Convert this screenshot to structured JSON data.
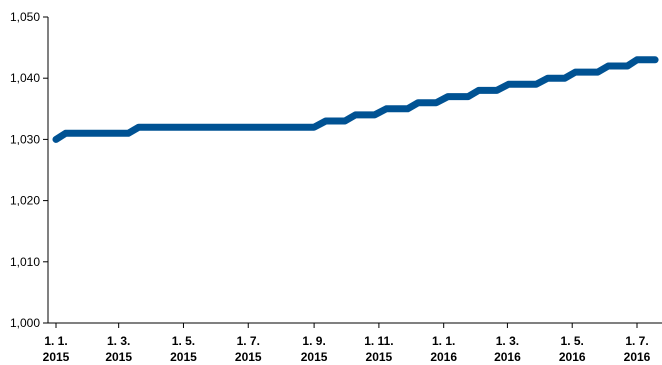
{
  "chart_data": {
    "type": "line",
    "title": "",
    "xlabel": "",
    "ylabel": "",
    "ylim": [
      1.0,
      1.05
    ],
    "y_ticks": [
      "1,000",
      "1,010",
      "1,020",
      "1,030",
      "1,040",
      "1,050"
    ],
    "y_tick_values": [
      1.0,
      1.01,
      1.02,
      1.03,
      1.04,
      1.05
    ],
    "x_ticks": [
      {
        "line1": "1. 1.",
        "line2": "2015",
        "date": "2015-01-01"
      },
      {
        "line1": "1. 3.",
        "line2": "2015",
        "date": "2015-03-01"
      },
      {
        "line1": "1. 5.",
        "line2": "2015",
        "date": "2015-05-01"
      },
      {
        "line1": "1. 7.",
        "line2": "2015",
        "date": "2015-07-01"
      },
      {
        "line1": "1. 9.",
        "line2": "2015",
        "date": "2015-09-01"
      },
      {
        "line1": "1. 11.",
        "line2": "2015",
        "date": "2015-11-01"
      },
      {
        "line1": "1. 1.",
        "line2": "2016",
        "date": "2016-01-01"
      },
      {
        "line1": "1. 3.",
        "line2": "2016",
        "date": "2016-03-01"
      },
      {
        "line1": "1. 5.",
        "line2": "2016",
        "date": "2016-05-01"
      },
      {
        "line1": "1. 7.",
        "line2": "2016",
        "date": "2016-07-01"
      }
    ],
    "xlim": [
      "2015-01-01",
      "2016-08-01"
    ],
    "grid": false,
    "legend": "none",
    "series": [
      {
        "color": "#005293",
        "points": [
          {
            "x": "2015-01-01",
            "y": 1.03
          },
          {
            "x": "2015-01-10",
            "y": 1.031
          },
          {
            "x": "2015-03-10",
            "y": 1.031
          },
          {
            "x": "2015-03-20",
            "y": 1.032
          },
          {
            "x": "2015-09-01",
            "y": 1.032
          },
          {
            "x": "2015-09-12",
            "y": 1.033
          },
          {
            "x": "2015-09-30",
            "y": 1.033
          },
          {
            "x": "2015-10-10",
            "y": 1.034
          },
          {
            "x": "2015-10-28",
            "y": 1.034
          },
          {
            "x": "2015-11-08",
            "y": 1.035
          },
          {
            "x": "2015-11-28",
            "y": 1.035
          },
          {
            "x": "2015-12-08",
            "y": 1.036
          },
          {
            "x": "2015-12-25",
            "y": 1.036
          },
          {
            "x": "2016-01-05",
            "y": 1.037
          },
          {
            "x": "2016-01-24",
            "y": 1.037
          },
          {
            "x": "2016-02-03",
            "y": 1.038
          },
          {
            "x": "2016-02-20",
            "y": 1.038
          },
          {
            "x": "2016-03-02",
            "y": 1.039
          },
          {
            "x": "2016-03-28",
            "y": 1.039
          },
          {
            "x": "2016-04-08",
            "y": 1.04
          },
          {
            "x": "2016-04-24",
            "y": 1.04
          },
          {
            "x": "2016-05-04",
            "y": 1.041
          },
          {
            "x": "2016-05-25",
            "y": 1.041
          },
          {
            "x": "2016-06-04",
            "y": 1.042
          },
          {
            "x": "2016-06-22",
            "y": 1.042
          },
          {
            "x": "2016-07-01",
            "y": 1.043
          },
          {
            "x": "2016-07-18",
            "y": 1.043
          }
        ]
      }
    ]
  }
}
